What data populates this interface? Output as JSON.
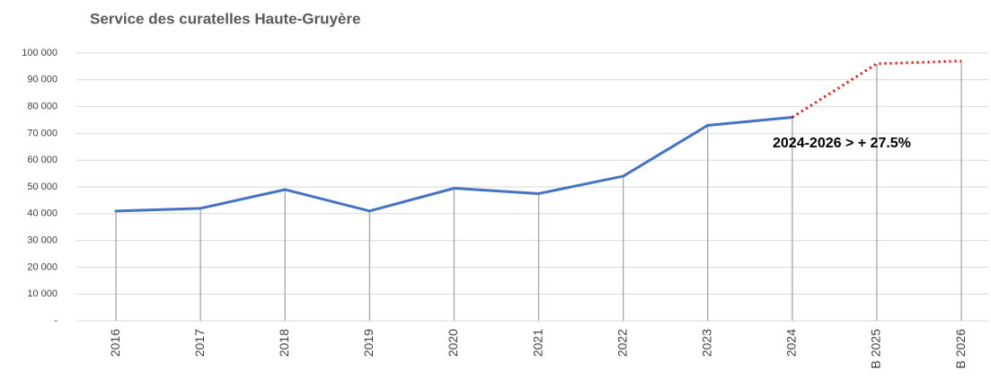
{
  "chart_data": {
    "type": "line",
    "title": "Service des curatelles Haute-Gruyère",
    "annotation": "2024-2026 > + 27.5%",
    "categories": [
      "2016",
      "2017",
      "2018",
      "2019",
      "2020",
      "2021",
      "2022",
      "2023",
      "2024",
      "B 2025",
      "B 2026"
    ],
    "series": [
      {
        "color": "#4472c4",
        "style": "solid",
        "values": [
          41000,
          42000,
          49000,
          41000,
          49500,
          47500,
          54000,
          73000,
          76000,
          null,
          null
        ]
      },
      {
        "color": "#ff0000",
        "style": "dotted",
        "values": [
          null,
          null,
          null,
          null,
          null,
          null,
          null,
          null,
          76000,
          96000,
          97000
        ]
      }
    ],
    "ylim": [
      0,
      100000
    ],
    "yticks": [
      {
        "value": 0,
        "label": "-"
      },
      {
        "value": 10000,
        "label": "10 000"
      },
      {
        "value": 20000,
        "label": "20 000"
      },
      {
        "value": 30000,
        "label": "30 000"
      },
      {
        "value": 40000,
        "label": "40 000"
      },
      {
        "value": 50000,
        "label": "50 000"
      },
      {
        "value": 60000,
        "label": "60 000"
      },
      {
        "value": 70000,
        "label": "70 000"
      },
      {
        "value": 80000,
        "label": "80 000"
      },
      {
        "value": 90000,
        "label": "90 000"
      },
      {
        "value": 100000,
        "label": "100 000"
      }
    ],
    "grid": true
  }
}
